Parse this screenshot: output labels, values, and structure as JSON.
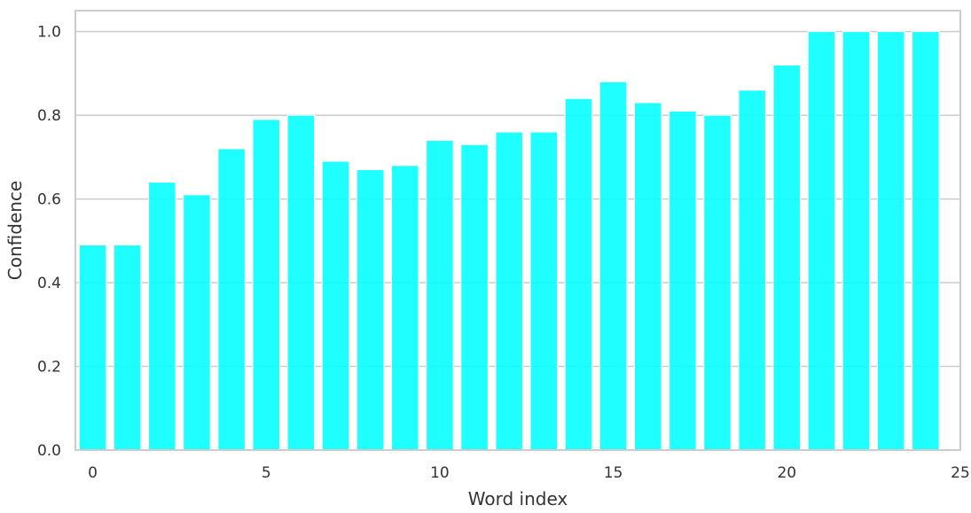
{
  "chart_data": {
    "type": "bar",
    "title": "",
    "xlabel": "Word index",
    "ylabel": "Confidence",
    "x": [
      0,
      1,
      2,
      3,
      4,
      5,
      6,
      7,
      8,
      9,
      10,
      11,
      12,
      13,
      14,
      15,
      16,
      17,
      18,
      19,
      20,
      21,
      22,
      23,
      24
    ],
    "values": [
      0.49,
      0.49,
      0.64,
      0.61,
      0.72,
      0.79,
      0.8,
      0.69,
      0.67,
      0.68,
      0.74,
      0.73,
      0.76,
      0.76,
      0.84,
      0.88,
      0.83,
      0.81,
      0.8,
      0.86,
      0.92,
      1.0,
      1.0,
      1.0,
      1.0
    ],
    "xlim": [
      -0.5,
      25
    ],
    "ylim": [
      0,
      1.05
    ],
    "x_ticks": [
      "0",
      "5",
      "10",
      "15",
      "20",
      "25"
    ],
    "y_ticks": [
      "0.0",
      "0.2",
      "0.4",
      "0.6",
      "0.8",
      "1.0"
    ],
    "grid": "horizontal",
    "bar_color": "#00FFFF"
  }
}
